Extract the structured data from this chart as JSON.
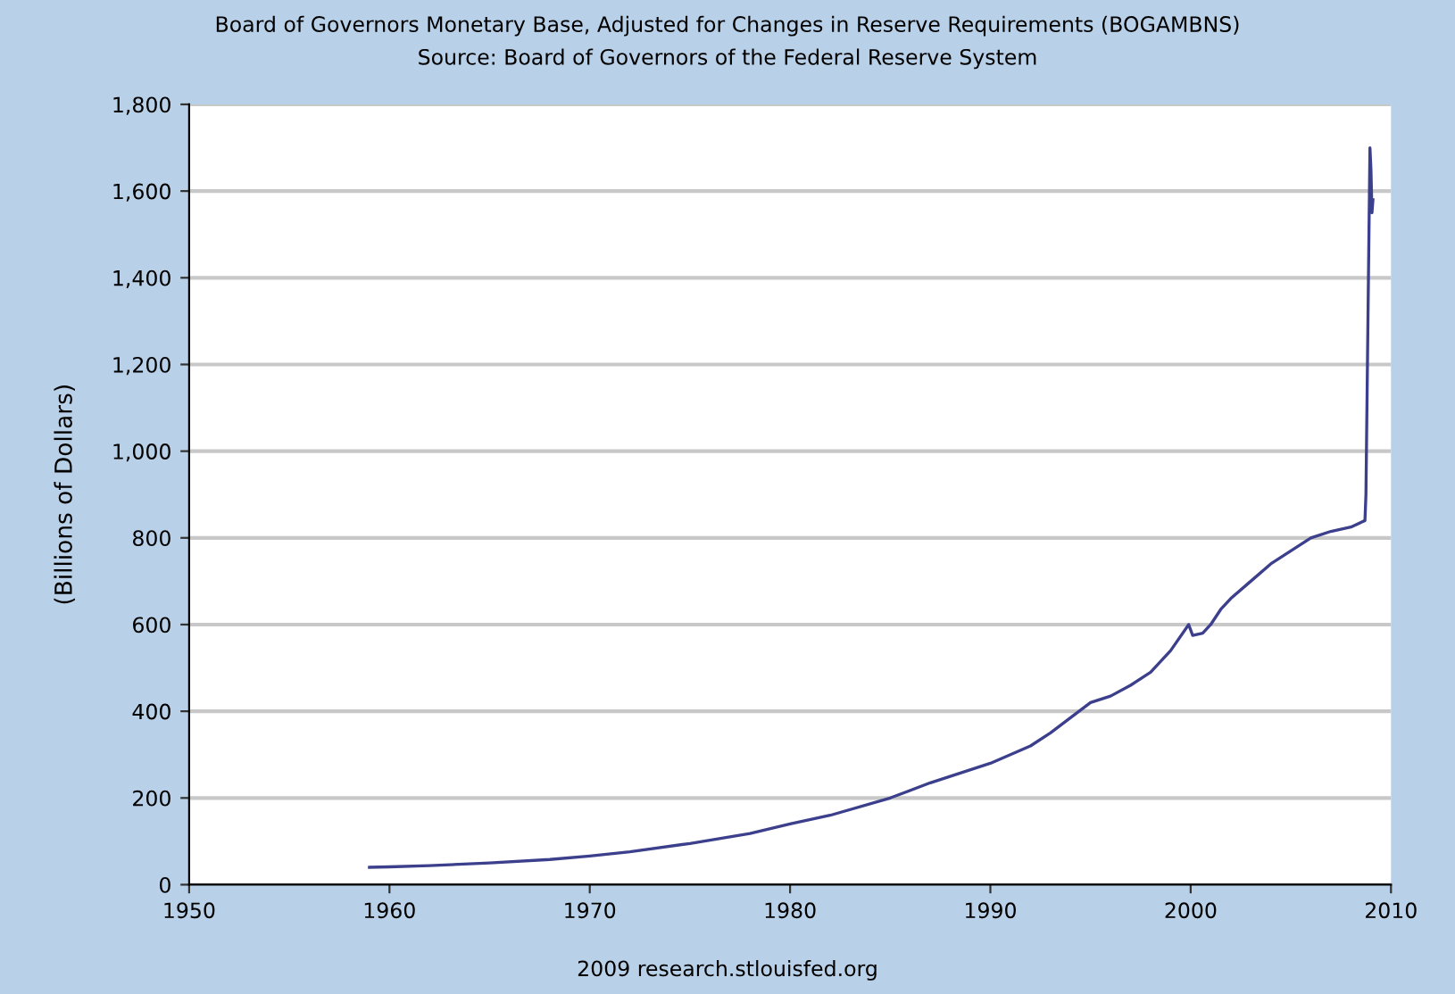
{
  "chart_data": {
    "type": "line",
    "title": "Board of Governors Monetary Base, Adjusted for Changes in Reserve Requirements (BOGAMBNS)",
    "subtitle": "Source: Board of Governors of the Federal Reserve System",
    "ylabel": "(Billions of Dollars)",
    "annotations": [
      "2009 research.stlouisfed.org"
    ],
    "xlim": [
      1950,
      2010
    ],
    "xticks": [
      1950,
      1960,
      1970,
      1980,
      1990,
      2000,
      2010
    ],
    "ylim": [
      0,
      1800
    ],
    "yticks": [
      0,
      200,
      400,
      600,
      800,
      {
        "value": 1000,
        "label": "1,000"
      },
      {
        "value": 1200,
        "label": "1,200"
      },
      {
        "value": 1400,
        "label": "1,400"
      },
      {
        "value": 1600,
        "label": "1,600"
      },
      {
        "value": 1800,
        "label": "1,800"
      }
    ],
    "grid": "y",
    "legend": false,
    "series": [
      {
        "color": "#3c3f8c",
        "x": [
          1959,
          1960,
          1962,
          1965,
          1968,
          1970,
          1972,
          1975,
          1978,
          1980,
          1982,
          1985,
          1987,
          1990,
          1992,
          1993,
          1995,
          1996,
          1997,
          1998,
          1999,
          1999.9,
          2000.1,
          2000.6,
          2001,
          2001.5,
          2002,
          2003,
          2004,
          2005,
          2006,
          2007,
          2008,
          2008.7,
          2008.75,
          2008.85,
          2008.95,
          2009.0,
          2009.05,
          2009.1
        ],
        "values": [
          40,
          41,
          44,
          50,
          58,
          66,
          76,
          95,
          118,
          140,
          160,
          200,
          235,
          280,
          320,
          350,
          420,
          435,
          460,
          490,
          540,
          600,
          575,
          580,
          600,
          635,
          660,
          700,
          740,
          770,
          800,
          815,
          825,
          840,
          900,
          1300,
          1700,
          1650,
          1550,
          1580
        ]
      }
    ]
  }
}
